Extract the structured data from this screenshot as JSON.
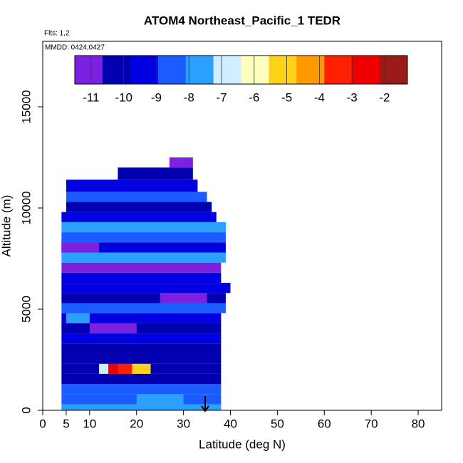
{
  "chart_data": {
    "type": "heatmap",
    "title": "ATOM4 Northeast_Pacific_1 TEDR",
    "flights_note": "Flts: 1,2",
    "dates_note": "MMDD: 0424,0427",
    "x_label": "Latitude (deg N)",
    "y_label": "Altitude (m)",
    "xlim": [
      0,
      85
    ],
    "xticks": [
      0,
      5,
      10,
      20,
      30,
      40,
      50,
      60,
      70,
      80
    ],
    "ylim": [
      0,
      18240
    ],
    "yticks": [
      0,
      5000,
      10000,
      15000
    ],
    "colorbar": {
      "lim": [
        -11.5,
        -1.3
      ],
      "ticks": [
        -11,
        -10,
        -9,
        -8,
        -7,
        -6,
        -5,
        -4,
        -3,
        -2
      ],
      "colors": [
        "#7b22e0",
        "#0000b0",
        "#0000e0",
        "#1a5cff",
        "#2aa0ff",
        "#cfeeff",
        "#ffffc0",
        "#ffd21a",
        "#ff9900",
        "#ff2000",
        "#ee0000",
        "#9a1a1a"
      ]
    },
    "cells": [
      {
        "lat": [
          4,
          38
        ],
        "alt": [
          0,
          300
        ],
        "value": -8
      },
      {
        "lat": [
          4,
          38
        ],
        "alt": [
          300,
          800
        ],
        "value": -8.5
      },
      {
        "lat": [
          20,
          30
        ],
        "alt": [
          300,
          800
        ],
        "value": -7.5
      },
      {
        "lat": [
          4,
          38
        ],
        "alt": [
          800,
          1300
        ],
        "value": -8.2
      },
      {
        "lat": [
          4,
          38
        ],
        "alt": [
          1300,
          1800
        ],
        "value": -10.3
      },
      {
        "lat": [
          4,
          38
        ],
        "alt": [
          1800,
          2300
        ],
        "value": -9.8
      },
      {
        "lat": [
          12,
          14
        ],
        "alt": [
          1800,
          2300
        ],
        "value": -6.5
      },
      {
        "lat": [
          14,
          16
        ],
        "alt": [
          1800,
          2300
        ],
        "value": -2.5
      },
      {
        "lat": [
          16,
          19
        ],
        "alt": [
          1800,
          2300
        ],
        "value": -3.8
      },
      {
        "lat": [
          19,
          23
        ],
        "alt": [
          1800,
          2300
        ],
        "value": -5
      },
      {
        "lat": [
          4,
          38
        ],
        "alt": [
          2300,
          2800
        ],
        "value": -10
      },
      {
        "lat": [
          4,
          38
        ],
        "alt": [
          2800,
          3300
        ],
        "value": -10.6
      },
      {
        "lat": [
          4,
          38
        ],
        "alt": [
          3300,
          3800
        ],
        "value": -9.5
      },
      {
        "lat": [
          4,
          38
        ],
        "alt": [
          3800,
          4300
        ],
        "value": -10.5
      },
      {
        "lat": [
          10,
          20
        ],
        "alt": [
          3800,
          4300
        ],
        "value": -11
      },
      {
        "lat": [
          4,
          38
        ],
        "alt": [
          4300,
          4800
        ],
        "value": -9
      },
      {
        "lat": [
          5,
          10
        ],
        "alt": [
          4300,
          4800
        ],
        "value": -8
      },
      {
        "lat": [
          4,
          39
        ],
        "alt": [
          4800,
          5300
        ],
        "value": -8.4
      },
      {
        "lat": [
          4,
          39
        ],
        "alt": [
          5300,
          5800
        ],
        "value": -10
      },
      {
        "lat": [
          25,
          35
        ],
        "alt": [
          5300,
          5800
        ],
        "value": -11
      },
      {
        "lat": [
          4,
          40
        ],
        "alt": [
          5800,
          6300
        ],
        "value": -9.3
      },
      {
        "lat": [
          4,
          38
        ],
        "alt": [
          6300,
          6800
        ],
        "value": -9
      },
      {
        "lat": [
          4,
          38
        ],
        "alt": [
          6800,
          7300
        ],
        "value": -10.8
      },
      {
        "lat": [
          4,
          39
        ],
        "alt": [
          7300,
          7800
        ],
        "value": -8
      },
      {
        "lat": [
          4,
          39
        ],
        "alt": [
          7800,
          8300
        ],
        "value": -9
      },
      {
        "lat": [
          4,
          12
        ],
        "alt": [
          7800,
          8300
        ],
        "value": -11.2
      },
      {
        "lat": [
          4,
          39
        ],
        "alt": [
          8300,
          8800
        ],
        "value": -8.5
      },
      {
        "lat": [
          4,
          39
        ],
        "alt": [
          8800,
          9300
        ],
        "value": -8
      },
      {
        "lat": [
          4,
          37
        ],
        "alt": [
          9300,
          9800
        ],
        "value": -9
      },
      {
        "lat": [
          5,
          36
        ],
        "alt": [
          9800,
          10300
        ],
        "value": -10.3
      },
      {
        "lat": [
          5,
          35
        ],
        "alt": [
          10300,
          10800
        ],
        "value": -8.5
      },
      {
        "lat": [
          5,
          33
        ],
        "alt": [
          10800,
          11400
        ],
        "value": -9.2
      },
      {
        "lat": [
          16,
          32
        ],
        "alt": [
          11400,
          12000
        ],
        "value": -10.5
      },
      {
        "lat": [
          27,
          32
        ],
        "alt": [
          12000,
          12500
        ],
        "value": -11
      }
    ]
  }
}
